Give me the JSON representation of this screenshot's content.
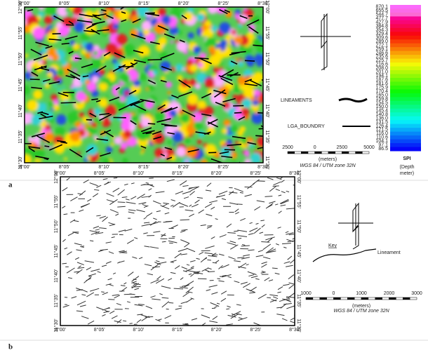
{
  "panel_a": {
    "label": "a",
    "x_labels": [
      "8°00'",
      "8°05'",
      "8°10'",
      "8°15'",
      "8°20'",
      "8°25'",
      "8°30'"
    ],
    "y_labels": [
      "12°00'",
      "11°55'",
      "11°50'",
      "11°45'",
      "11°40'",
      "11°35'",
      "11°30'"
    ],
    "legend": {
      "lineaments": "LINEAMENTS",
      "boundary": "LGA_BOUNDRY"
    },
    "scale_labels": [
      "2500",
      "0",
      "2500",
      "5000"
    ],
    "scale_unit": "(meters)",
    "projection": "WGS 84 / UTM zone 32N",
    "colorbar": {
      "title": "SPI",
      "subtitle": [
        "(Depth",
        "meter)"
      ],
      "labels": [
        "870.1",
        "655.5",
        "544.7",
        "477.7",
        "427.9",
        "384.8",
        "354.3",
        "329.4",
        "309.6",
        "289.0",
        "272.1",
        "259.1",
        "246.6",
        "235.6",
        "225.7",
        "216.6",
        "208.0",
        "201.0",
        "194.1",
        "187.6",
        "181.6",
        "175.9",
        "170.4",
        "165.0",
        "159.8",
        "154.5",
        "150.0",
        "145.4",
        "140.8",
        "136.0",
        "131.5",
        "126.4",
        "121.5",
        "116.0",
        "110.6",
        "104.1",
        "97.1",
        "86.5"
      ]
    }
  },
  "panel_b": {
    "label": "b",
    "x_labels": [
      "8°00'",
      "8°05'",
      "8°10'",
      "8°15'",
      "8°20'",
      "8°25'",
      "8°30'"
    ],
    "y_labels": [
      "12°00'",
      "11°55'",
      "11°50'",
      "11°45'",
      "11°40'",
      "11°35'",
      "11°30'"
    ],
    "key": "Key",
    "legend": "Lineament",
    "scale_labels": [
      "1000",
      "0",
      "1000",
      "2000",
      "3000"
    ],
    "scale_unit": "(meters)",
    "projection": "WGS 84 / UTM zone 32N"
  }
}
